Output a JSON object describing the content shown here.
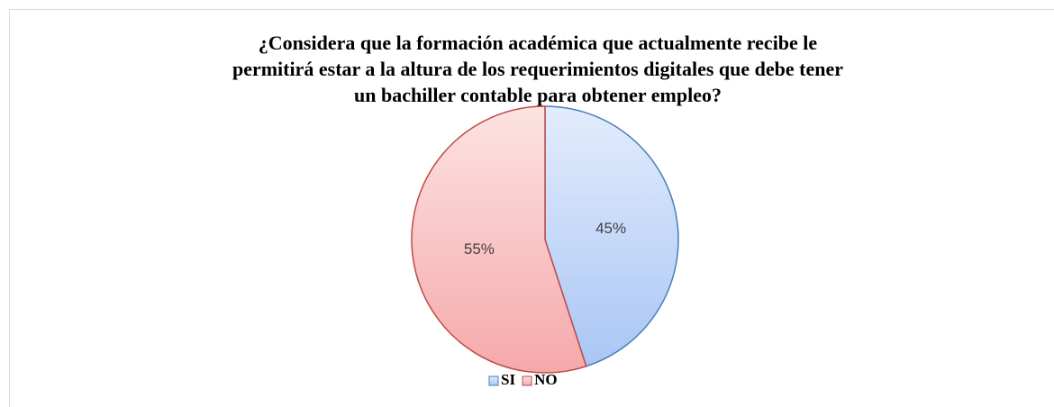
{
  "chart_data": {
    "type": "pie",
    "title": [
      "¿Considera que la formación académica que actualmente recibe le",
      "permitirá estar a la altura de los requerimientos digitales que debe tener",
      "un bachiller contable para obtener empleo?"
    ],
    "categories": [
      "SI",
      "NO"
    ],
    "values": [
      45,
      55
    ],
    "value_labels": [
      "45%",
      "55%"
    ],
    "colors": [
      "#a9c6f5",
      "#f5a9a9"
    ],
    "legend": "bottom"
  }
}
